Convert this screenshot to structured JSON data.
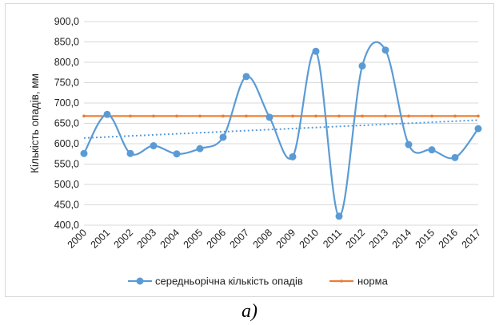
{
  "chart_data": {
    "type": "line",
    "title": "",
    "xlabel": "",
    "ylabel": "Кількість опадів, мм",
    "ylim": [
      400,
      900
    ],
    "yticks": [
      "400,0",
      "450,0",
      "500,0",
      "550,0",
      "600,0",
      "650,0",
      "700,0",
      "750,0",
      "800,0",
      "850,0",
      "900,0"
    ],
    "categories": [
      "2000",
      "2001",
      "2002",
      "2003",
      "2004",
      "2005",
      "2006",
      "2007",
      "2008",
      "2009",
      "2010",
      "2011",
      "2012",
      "2013",
      "2014",
      "2015",
      "2016",
      "2017"
    ],
    "grid": true,
    "legend_position": "bottom",
    "series": [
      {
        "name": "середньорічна кількість опадів",
        "color": "#5b9bd5",
        "style": "smooth-line-with-markers",
        "values": [
          576,
          672,
          576,
          595,
          575,
          588,
          616,
          765,
          665,
          568,
          827,
          422,
          791,
          830,
          598,
          585,
          566,
          637
        ]
      },
      {
        "name": "норма",
        "color": "#ed7d31",
        "style": "line-with-markers",
        "values": [
          668,
          668,
          668,
          668,
          668,
          668,
          668,
          668,
          668,
          668,
          668,
          668,
          668,
          668,
          668,
          668,
          668,
          668
        ]
      }
    ],
    "trendline": {
      "of_series": "середньорічна кількість опадів",
      "color": "#5b9bd5",
      "style": "dotted",
      "start": 614,
      "end": 658
    }
  },
  "caption": "а)"
}
